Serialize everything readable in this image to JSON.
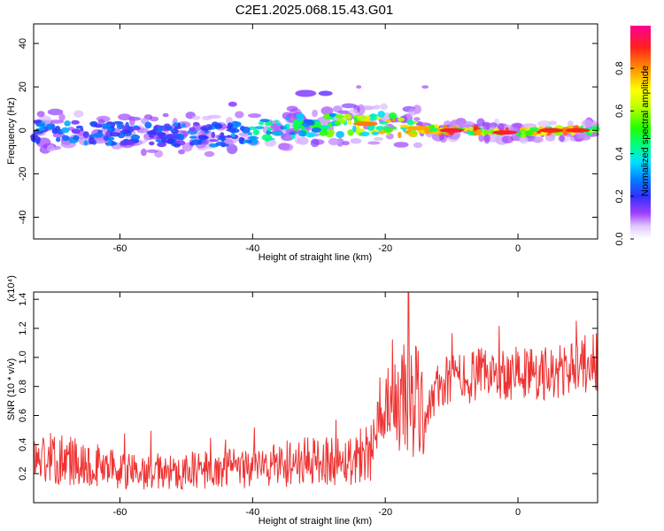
{
  "title": "C2E1.2025.068.15.43.G01",
  "chart_data": [
    {
      "type": "heatmap",
      "name": "spectrogram",
      "xlabel": "Height of straight line (km)",
      "ylabel": "Frequency (Hz)",
      "xlim": [
        -73,
        12
      ],
      "ylim": [
        -50,
        49
      ],
      "xticks": [
        -60,
        -40,
        -20,
        0
      ],
      "yticks": [
        -40,
        -20,
        0,
        20,
        40
      ],
      "colorbar": {
        "label": "Normalized spectral amplitude",
        "range": [
          0.0,
          1.0
        ],
        "ticks": [
          "0.0",
          "0.2",
          "0.4",
          "0.6",
          "0.8"
        ],
        "tick_values": [
          0.0,
          0.2,
          0.4,
          0.6,
          0.8
        ]
      },
      "ridge": {
        "x": [
          -73,
          -65,
          -55,
          -45,
          -40,
          -35,
          -30,
          -25,
          -20,
          -15,
          -10,
          -5,
          0,
          5,
          10,
          12
        ],
        "center_hz": [
          0,
          -1,
          -2,
          -2,
          -1,
          1,
          3,
          3,
          3,
          1,
          0,
          0,
          -1,
          0,
          0,
          0
        ],
        "peak_amplitude": [
          0.35,
          0.32,
          0.3,
          0.3,
          0.45,
          0.5,
          0.55,
          0.7,
          0.8,
          0.85,
          0.95,
          0.95,
          0.95,
          0.95,
          0.95,
          0.5
        ]
      }
    },
    {
      "type": "line",
      "name": "snr",
      "xlabel": "Height of straight line (km)",
      "ylabel": "SNR (10 * v/v)",
      "scale_label": "(x10⁴)",
      "xlim": [
        -73,
        12
      ],
      "ylim": [
        0.0,
        1.45
      ],
      "xticks": [
        -60,
        -40,
        -20,
        0
      ],
      "yticks": [
        0.2,
        0.4,
        0.6,
        0.8,
        1.0,
        1.2,
        1.4
      ],
      "color": "#ee3333",
      "trend": {
        "x": [
          -73,
          -70,
          -65,
          -60,
          -55,
          -50,
          -45,
          -40,
          -35,
          -30,
          -25,
          -22,
          -20,
          -18,
          -16,
          -14,
          -12,
          -10,
          -5,
          0,
          5,
          10,
          12
        ],
        "y": [
          0.3,
          0.3,
          0.28,
          0.22,
          0.2,
          0.22,
          0.23,
          0.24,
          0.27,
          0.29,
          0.3,
          0.38,
          0.55,
          0.7,
          0.72,
          0.6,
          0.8,
          0.85,
          0.88,
          0.9,
          0.88,
          0.95,
          0.98
        ]
      },
      "notable_peak": {
        "x": -16.5,
        "y": 1.45
      }
    }
  ]
}
